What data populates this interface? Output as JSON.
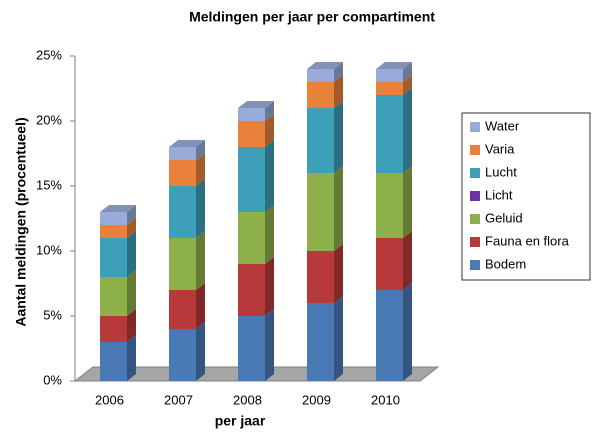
{
  "chart_data": {
    "type": "bar3d_stacked",
    "title": "Meldingen per jaar per compartiment",
    "x_label": "per jaar",
    "y_label": "Aantal meldingen (procentueel)",
    "categories": [
      "2006",
      "2007",
      "2008",
      "2009",
      "2010"
    ],
    "series": [
      {
        "name": "Bodem",
        "color": "#4a7ab5",
        "values": [
          3,
          4,
          5,
          6,
          7
        ]
      },
      {
        "name": "Fauna en flora",
        "color": "#b8393a",
        "values": [
          2,
          3,
          4,
          4,
          4
        ]
      },
      {
        "name": "Geluid",
        "color": "#8eb04a",
        "values": [
          3,
          4,
          4,
          6,
          5
        ]
      },
      {
        "name": "Licht",
        "color": "#7030a0",
        "values": [
          0,
          0,
          0,
          0,
          0
        ]
      },
      {
        "name": "Lucht",
        "color": "#3e9fb8",
        "values": [
          3,
          4,
          5,
          5,
          6
        ]
      },
      {
        "name": "Varia",
        "color": "#e8823a",
        "values": [
          1,
          2,
          2,
          2,
          1
        ]
      },
      {
        "name": "Water",
        "color": "#98abd9",
        "values": [
          1,
          1,
          1,
          1,
          1
        ]
      }
    ],
    "ylim": [
      0,
      25
    ],
    "yticks": [
      {
        "value": 0,
        "label": "0%"
      },
      {
        "value": 5,
        "label": "5%"
      },
      {
        "value": 10,
        "label": "10%"
      },
      {
        "value": 15,
        "label": "15%"
      },
      {
        "value": 20,
        "label": "20%"
      },
      {
        "value": 25,
        "label": "25%"
      }
    ],
    "grid": false,
    "legend": "right"
  }
}
